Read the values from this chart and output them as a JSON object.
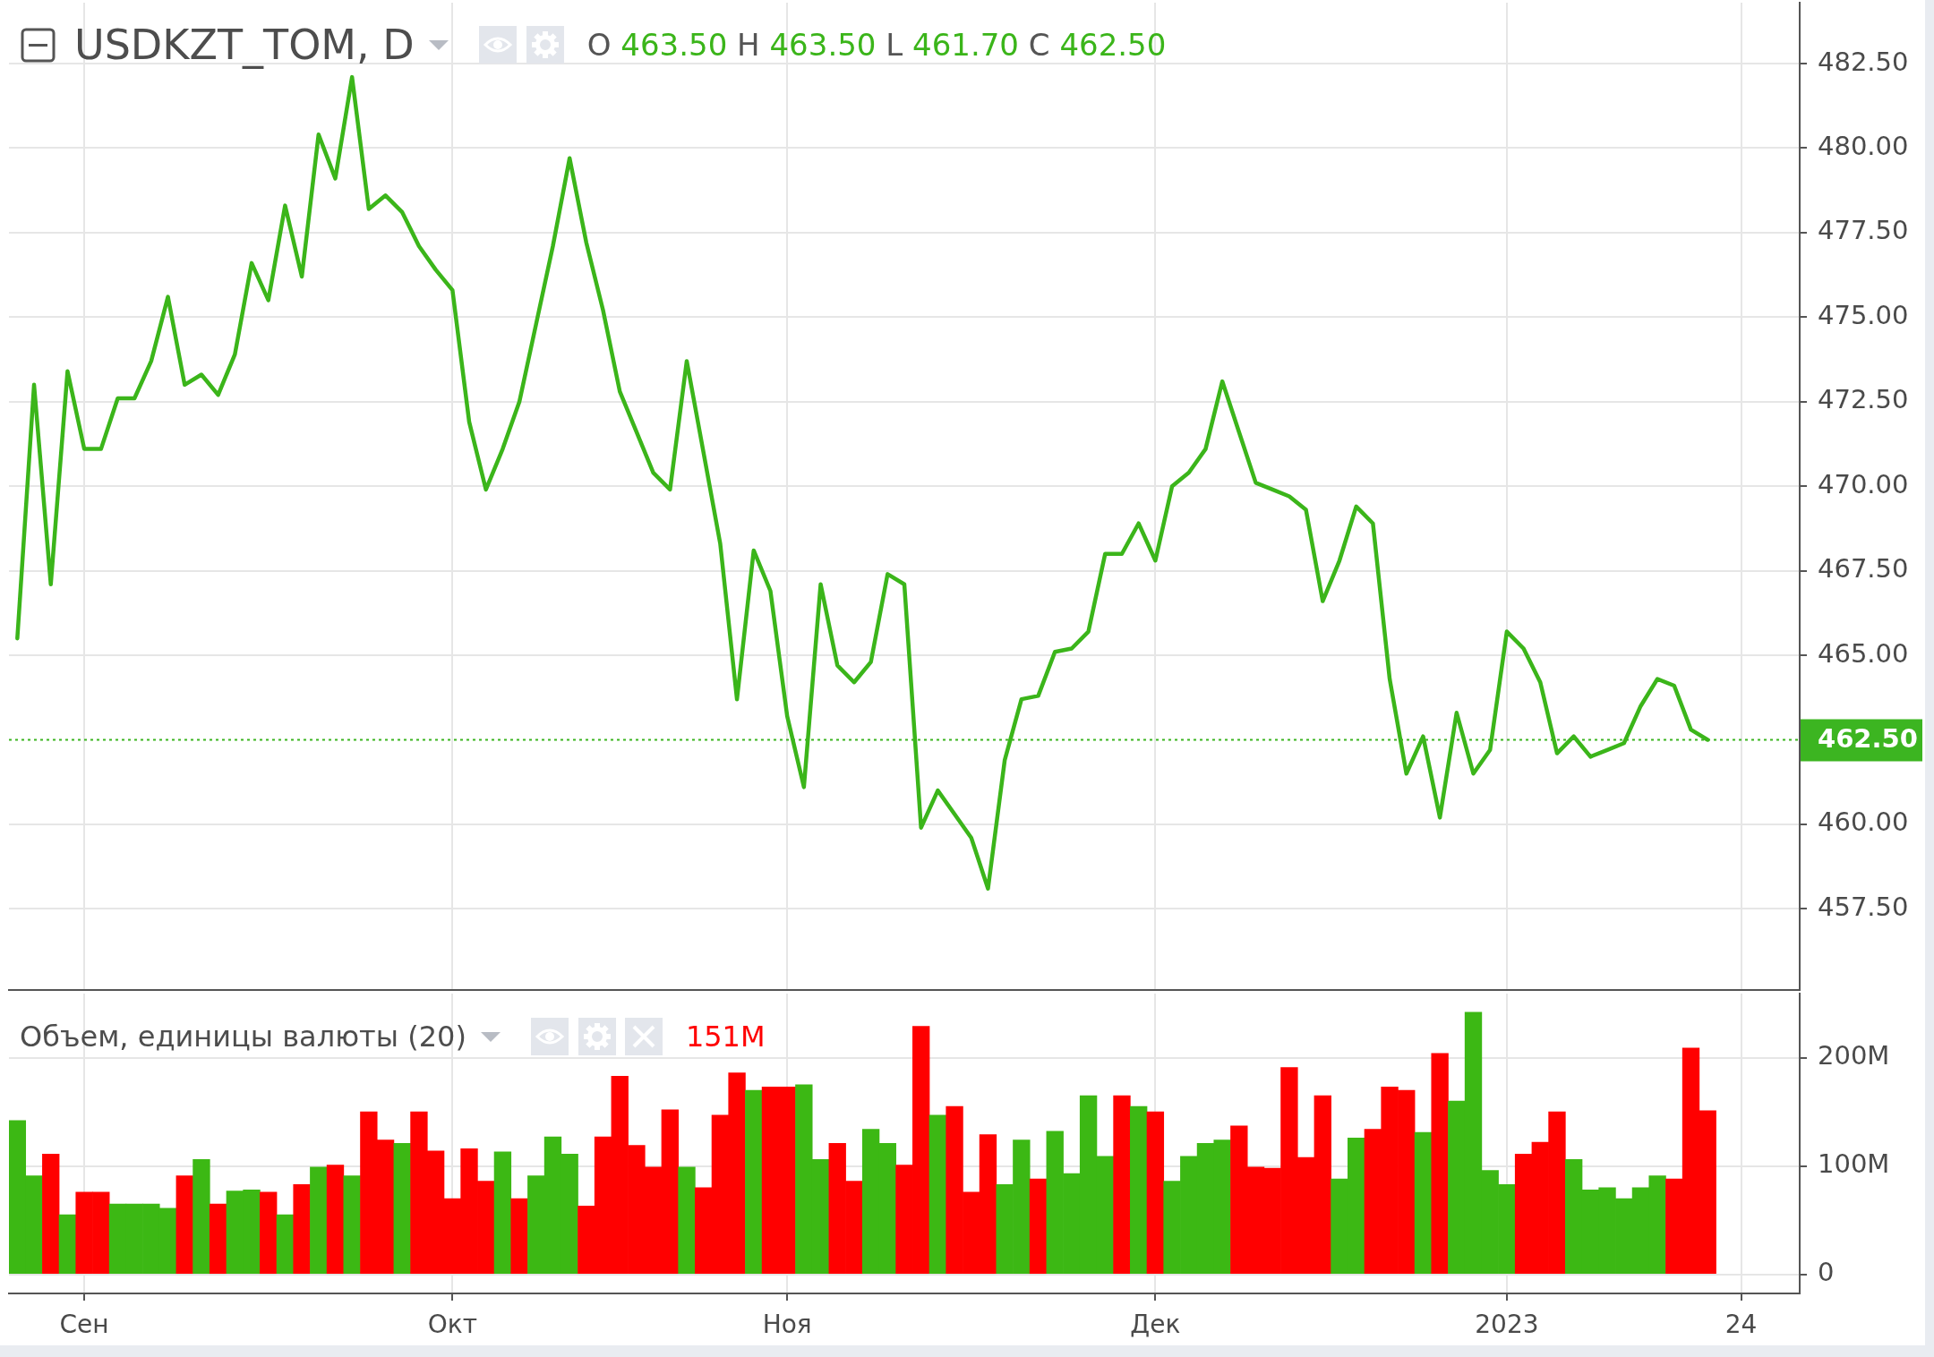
{
  "chart_data": [
    {
      "type": "line",
      "title": "USDKZT_TOM, D",
      "subtitle": "O 463.50 H 463.50 L 461.70 C 462.50",
      "categories": [
        null,
        null,
        null,
        null,
        null,
        null,
        null,
        null,
        null,
        null,
        null,
        null,
        null,
        null,
        null,
        null,
        null,
        null,
        null,
        null,
        null,
        null,
        null,
        null,
        null,
        null,
        null,
        null,
        null,
        null,
        null,
        null,
        null,
        null,
        null,
        null,
        null,
        null,
        null,
        null,
        null,
        null,
        null,
        null,
        null,
        null,
        null,
        null,
        null,
        null,
        null,
        null,
        null,
        null,
        null,
        null,
        null,
        null,
        null,
        null,
        null,
        null,
        null,
        null,
        null,
        null,
        null,
        null,
        null,
        null,
        null,
        null,
        null,
        null,
        null,
        null,
        null,
        null,
        null,
        null,
        null,
        null,
        null,
        null,
        null,
        null,
        null,
        null,
        null,
        null,
        null,
        null,
        null,
        null,
        null,
        null,
        null,
        null,
        null,
        null,
        null,
        null,
        null,
        null,
        null,
        null,
        null
      ],
      "values": [
        465.5,
        473.0,
        467.1,
        473.4,
        471.1,
        471.1,
        472.6,
        472.6,
        473.7,
        475.6,
        473.0,
        473.3,
        472.7,
        473.9,
        476.6,
        475.5,
        478.3,
        476.2,
        480.4,
        479.1,
        482.1,
        478.2,
        478.6,
        478.1,
        477.1,
        476.4,
        475.8,
        471.9,
        469.9,
        471.1,
        472.5,
        474.8,
        477.1,
        479.7,
        477.2,
        475.2,
        472.8,
        471.6,
        470.4,
        469.9,
        473.7,
        471.0,
        468.3,
        463.7,
        468.1,
        466.9,
        463.2,
        461.1,
        467.1,
        464.7,
        464.2,
        464.8,
        467.4,
        467.1,
        459.9,
        461.0,
        460.3,
        459.6,
        458.1,
        461.9,
        463.7,
        463.8,
        465.1,
        465.2,
        465.7,
        468.0,
        468.0,
        468.9,
        467.8,
        470.0,
        470.4,
        471.1,
        473.1,
        471.6,
        470.1,
        469.9,
        469.7,
        469.3,
        466.6,
        467.8,
        469.4,
        468.9,
        464.3,
        461.5,
        462.6,
        460.2,
        463.3,
        461.5,
        462.2,
        465.7,
        465.2,
        464.2,
        462.1,
        462.6,
        462.0,
        462.2,
        462.4,
        463.5,
        464.3,
        464.1,
        462.8,
        462.5,
        null,
        null,
        null,
        null,
        null
      ],
      "color": "#3bb51a",
      "marker": "none",
      "ylim": [
        455.1,
        484.3
      ],
      "yticks": [
        {
          "value": 457.5,
          "label": "457.50"
        },
        {
          "value": 460,
          "label": "460.00"
        },
        {
          "value": 465,
          "label": "465.00"
        },
        {
          "value": 467.5,
          "label": "467.50"
        },
        {
          "value": 470,
          "label": "470.00"
        },
        {
          "value": 472.5,
          "label": "472.50"
        },
        {
          "value": 475,
          "label": "475.00"
        },
        {
          "value": 477.5,
          "label": "477.50"
        },
        {
          "value": 480,
          "label": "480.00"
        },
        {
          "value": 482.5,
          "label": "482.50"
        }
      ],
      "ref_lines": [
        {
          "axis": "y",
          "value": 462.5,
          "label": "462.50",
          "color": "#3cb521",
          "line_style": "dotted"
        }
      ],
      "grid": true,
      "legend": false,
      "tick_labels": "y"
    },
    {
      "type": "bar",
      "title": "Объем, единицы валюты (20)",
      "annotations": [
        "151M"
      ],
      "categories": [
        null,
        null,
        null,
        null,
        "Сен",
        null,
        null,
        null,
        null,
        null,
        null,
        null,
        null,
        null,
        null,
        null,
        null,
        null,
        null,
        null,
        null,
        null,
        null,
        null,
        null,
        null,
        "Окт",
        null,
        null,
        null,
        null,
        null,
        null,
        null,
        null,
        null,
        null,
        null,
        null,
        null,
        null,
        null,
        null,
        null,
        null,
        null,
        "Ноя",
        null,
        null,
        null,
        null,
        null,
        null,
        null,
        null,
        null,
        null,
        null,
        null,
        null,
        null,
        null,
        null,
        null,
        null,
        null,
        null,
        null,
        "Дек",
        null,
        null,
        null,
        null,
        null,
        null,
        null,
        null,
        null,
        null,
        null,
        null,
        null,
        null,
        null,
        null,
        null,
        null,
        null,
        null,
        "2023",
        null,
        null,
        null,
        null,
        null,
        null,
        null,
        null,
        null,
        null,
        null,
        null,
        null,
        "24",
        null,
        null,
        null
      ],
      "values": [
        142,
        91,
        111,
        55,
        76,
        76,
        65,
        65,
        65,
        61,
        91,
        106,
        65,
        77,
        78,
        76,
        55,
        83,
        99,
        101,
        91,
        150,
        124,
        121,
        150,
        114,
        70,
        116,
        86,
        113,
        70,
        91,
        127,
        111,
        63,
        127,
        183,
        119,
        99,
        152,
        99,
        80,
        147,
        186,
        170,
        173,
        173,
        175,
        106,
        121,
        86,
        134,
        121,
        101,
        229,
        147,
        155,
        76,
        129,
        83,
        124,
        88,
        132,
        93,
        165,
        109,
        165,
        155,
        150,
        86,
        109,
        121,
        124,
        137,
        99,
        98,
        191,
        108,
        165,
        88,
        126,
        134,
        173,
        170,
        131,
        204,
        160,
        242,
        96,
        83,
        111,
        122,
        150,
        106,
        78,
        80,
        70,
        80,
        91,
        88,
        209,
        151,
        null,
        null,
        null,
        null,
        null
      ],
      "colors": [
        "#3cb814",
        "#3cb814",
        "#ff0000",
        "#3cb814",
        "#ff0000",
        "#ff0000",
        "#3cb814",
        "#3cb814",
        "#3cb814",
        "#3cb814",
        "#ff0000",
        "#3cb814",
        "#ff0000",
        "#3cb814",
        "#3cb814",
        "#ff0000",
        "#3cb814",
        "#ff0000",
        "#3cb814",
        "#ff0000",
        "#3cb814",
        "#ff0000",
        "#ff0000",
        "#3cb814",
        "#ff0000",
        "#ff0000",
        "#ff0000",
        "#ff0000",
        "#ff0000",
        "#3cb814",
        "#ff0000",
        "#3cb814",
        "#3cb814",
        "#3cb814",
        "#ff0000",
        "#ff0000",
        "#ff0000",
        "#ff0000",
        "#ff0000",
        "#ff0000",
        "#3cb814",
        "#ff0000",
        "#ff0000",
        "#ff0000",
        "#3cb814",
        "#ff0000",
        "#ff0000",
        "#3cb814",
        "#3cb814",
        "#ff0000",
        "#ff0000",
        "#3cb814",
        "#3cb814",
        "#ff0000",
        "#ff0000",
        "#3cb814",
        "#ff0000",
        "#ff0000",
        "#ff0000",
        "#3cb814",
        "#3cb814",
        "#ff0000",
        "#3cb814",
        "#3cb814",
        "#3cb814",
        "#3cb814",
        "#ff0000",
        "#3cb814",
        "#ff0000",
        "#3cb814",
        "#3cb814",
        "#3cb814",
        "#3cb814",
        "#ff0000",
        "#ff0000",
        "#ff0000",
        "#ff0000",
        "#ff0000",
        "#ff0000",
        "#3cb814",
        "#3cb814",
        "#ff0000",
        "#ff0000",
        "#ff0000",
        "#3cb814",
        "#ff0000",
        "#3cb814",
        "#3cb814",
        "#3cb814",
        "#3cb814",
        "#ff0000",
        "#ff0000",
        "#ff0000",
        "#3cb814",
        "#3cb814",
        "#3cb814",
        "#3cb814",
        "#3cb814",
        "#3cb814",
        "#ff0000",
        "#ff0000",
        "#ff0000",
        null,
        null,
        null,
        null,
        null
      ],
      "ylim": [
        -17.6,
        259.2
      ],
      "yticks": [
        0,
        {
          "value": 100,
          "label": "100M"
        },
        {
          "value": 200,
          "label": "200M"
        }
      ],
      "grid": true,
      "legend": false
    }
  ]
}
